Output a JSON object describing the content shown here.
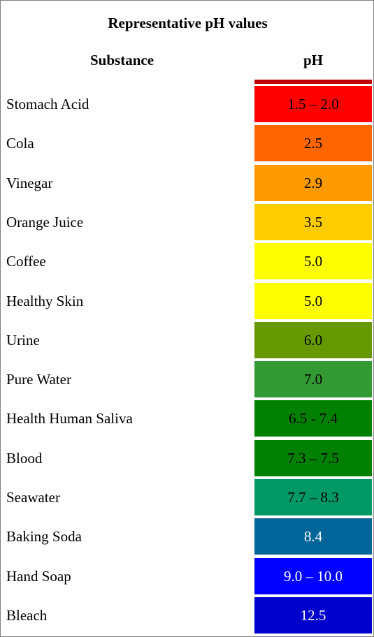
{
  "title": "Representative pH values",
  "headers": {
    "substance": "Substance",
    "ph": "pH"
  },
  "colors": {
    "top_bar": "#c00000"
  },
  "rows": [
    {
      "substance": "Stomach Acid",
      "ph": "1.5 – 2.0",
      "color": "#ff0000",
      "text_color": "#000000"
    },
    {
      "substance": "Cola",
      "ph": "2.5",
      "color": "#ff6600",
      "text_color": "#000000"
    },
    {
      "substance": "Vinegar",
      "ph": "2.9",
      "color": "#ff9900",
      "text_color": "#000000"
    },
    {
      "substance": "Orange Juice",
      "ph": "3.5",
      "color": "#ffcc00",
      "text_color": "#000000"
    },
    {
      "substance": "Coffee",
      "ph": "5.0",
      "color": "#ffff00",
      "text_color": "#000000"
    },
    {
      "substance": "Healthy Skin",
      "ph": "5.0",
      "color": "#ffff00",
      "text_color": "#000000"
    },
    {
      "substance": "Urine",
      "ph": "6.0",
      "color": "#669900",
      "text_color": "#000000"
    },
    {
      "substance": "Pure Water",
      "ph": "7.0",
      "color": "#339933",
      "text_color": "#000000"
    },
    {
      "substance": "Health Human Saliva",
      "ph": "6.5 - 7.4",
      "color": "#008000",
      "text_color": "#000000"
    },
    {
      "substance": "Blood",
      "ph": "7.3 – 7.5",
      "color": "#008000",
      "text_color": "#000000"
    },
    {
      "substance": "Seawater",
      "ph": "7.7 – 8.3",
      "color": "#009966",
      "text_color": "#000000"
    },
    {
      "substance": "Baking Soda",
      "ph": "8.4",
      "color": "#006699",
      "text_color": "#ffffff"
    },
    {
      "substance": "Hand Soap",
      "ph": "9.0 – 10.0",
      "color": "#0000ff",
      "text_color": "#ffffff"
    },
    {
      "substance": "Bleach",
      "ph": "12.5",
      "color": "#0000cc",
      "text_color": "#ffffff"
    }
  ]
}
